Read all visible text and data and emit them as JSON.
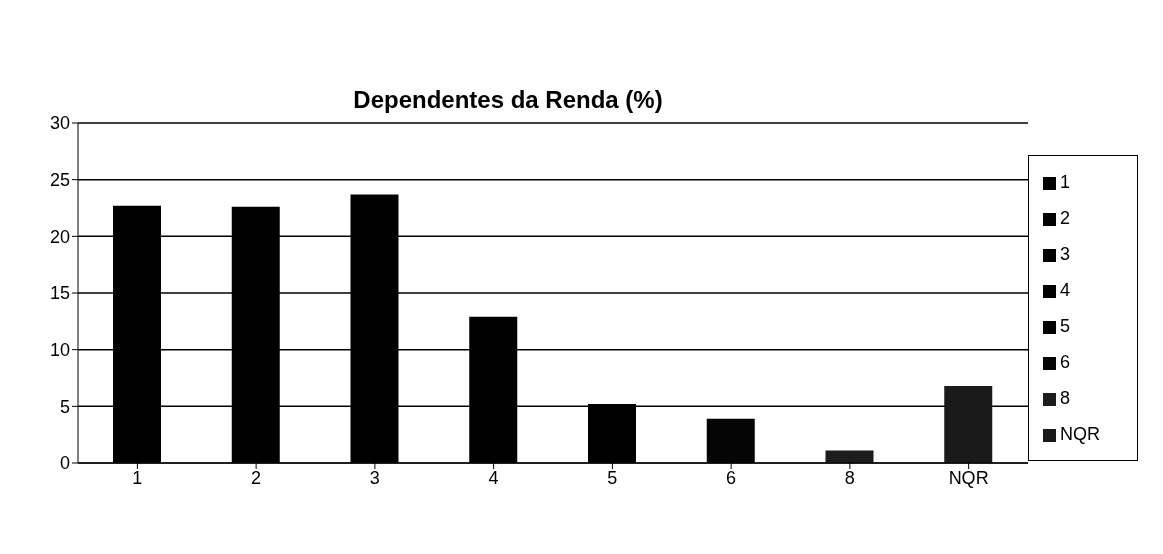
{
  "chart_data": {
    "type": "bar",
    "title": "Dependentes da Renda (%)",
    "stacked": true,
    "categories": [
      "1",
      "2",
      "3",
      "4",
      "5",
      "6",
      "8",
      "NQR"
    ],
    "series": [
      {
        "name": "1",
        "color": "#000000",
        "values": [
          22.7,
          null,
          null,
          null,
          null,
          null,
          null,
          null
        ]
      },
      {
        "name": "2",
        "color": "#000000",
        "values": [
          null,
          22.6,
          null,
          null,
          null,
          null,
          null,
          null
        ]
      },
      {
        "name": "3",
        "color": "#000000",
        "values": [
          null,
          null,
          23.7,
          null,
          null,
          null,
          null,
          null
        ]
      },
      {
        "name": "4",
        "color": "#000000",
        "values": [
          null,
          null,
          null,
          12.9,
          null,
          null,
          null,
          null
        ]
      },
      {
        "name": "5",
        "color": "#000000",
        "values": [
          null,
          null,
          null,
          null,
          5.2,
          null,
          null,
          null
        ]
      },
      {
        "name": "6",
        "color": "#050505",
        "values": [
          null,
          null,
          null,
          null,
          null,
          3.9,
          null,
          null
        ]
      },
      {
        "name": "8",
        "color": "#1c1c1c",
        "values": [
          null,
          null,
          null,
          null,
          null,
          null,
          1.1,
          null
        ]
      },
      {
        "name": "NQR",
        "color": "#1a1a1a",
        "values": [
          null,
          null,
          null,
          null,
          null,
          null,
          null,
          6.8
        ]
      }
    ],
    "ylim": [
      0,
      30
    ],
    "yticks": [
      0,
      5,
      10,
      15,
      20,
      25,
      30
    ],
    "grid": "y",
    "legend": "right"
  }
}
